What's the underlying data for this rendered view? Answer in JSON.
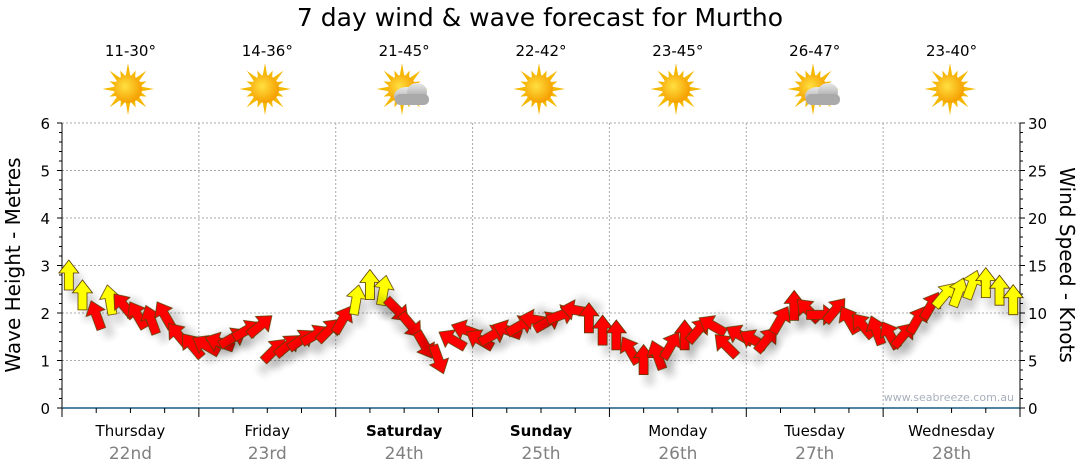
{
  "title": "7 day wind & wave forecast for Murtho",
  "days": [
    {
      "name": "Thursday",
      "date": "22nd",
      "temp": "11-30°",
      "icon": "sun-icon",
      "weekend": false
    },
    {
      "name": "Friday",
      "date": "23rd",
      "temp": "14-36°",
      "icon": "sun-icon",
      "weekend": false
    },
    {
      "name": "Saturday",
      "date": "24th",
      "temp": "21-45°",
      "icon": "sun-cloud-icon",
      "weekend": true
    },
    {
      "name": "Sunday",
      "date": "25th",
      "temp": "22-42°",
      "icon": "sun-icon",
      "weekend": true
    },
    {
      "name": "Monday",
      "date": "26th",
      "temp": "23-45°",
      "icon": "sun-icon",
      "weekend": false
    },
    {
      "name": "Tuesday",
      "date": "27th",
      "temp": "26-47°",
      "icon": "sun-cloud-icon",
      "weekend": false
    },
    {
      "name": "Wednesday",
      "date": "28th",
      "temp": "23-40°",
      "icon": "sun-icon",
      "weekend": false
    }
  ],
  "watermark": "www.seabreeze.com.au",
  "chart_data": {
    "type": "scatter",
    "title": "7 day wind & wave forecast for Murtho",
    "ylabel_left": "Wave Height - Metres",
    "ylabel_right": "Wind Speed - Knots",
    "ylim_left": [
      0,
      6
    ],
    "ylim_right": [
      0,
      30
    ],
    "yticks_left": [
      "0",
      "1",
      "2",
      "3",
      "4",
      "5",
      "6"
    ],
    "yticks_right": [
      "0",
      "5",
      "10",
      "15",
      "20",
      "25",
      "30"
    ],
    "grid": true,
    "points_per_day": 10,
    "strong_threshold_knots": 11,
    "colors": {
      "normal": "#ff0000",
      "strong": "#ffff00"
    },
    "wind_speed_knots": [
      14.0,
      11.9,
      9.8,
      11.4,
      10.8,
      9.8,
      9.3,
      9.8,
      7.7,
      6.6,
      6.6,
      6.9,
      7.4,
      8.2,
      8.7,
      6.1,
      6.6,
      7.2,
      7.7,
      8.2,
      9.3,
      11.4,
      13.0,
      12.4,
      10.3,
      8.7,
      6.6,
      5.1,
      7.2,
      8.2,
      7.2,
      7.7,
      8.2,
      8.7,
      9.3,
      9.1,
      9.8,
      10.3,
      9.5,
      8.2,
      7.7,
      6.1,
      5.1,
      5.6,
      6.6,
      7.7,
      8.2,
      8.7,
      6.6,
      7.7,
      7.2,
      7.2,
      9.3,
      10.8,
      10.3,
      9.8,
      10.3,
      9.3,
      8.7,
      8.2,
      7.7,
      7.7,
      9.3,
      10.8,
      11.9,
      12.2,
      13.0,
      13.2,
      12.4,
      11.4
    ],
    "arrow_direction_deg": [
      0,
      0,
      -20,
      -10,
      -40,
      -30,
      -20,
      -30,
      -40,
      -40,
      -60,
      -70,
      60,
      60,
      50,
      45,
      50,
      55,
      60,
      45,
      30,
      10,
      0,
      10,
      135,
      140,
      150,
      160,
      -60,
      -70,
      -60,
      60,
      -70,
      60,
      -80,
      60,
      70,
      -80,
      0,
      0,
      0,
      -30,
      0,
      -20,
      30,
      0,
      40,
      -60,
      -45,
      -60,
      -60,
      40,
      30,
      0,
      -45,
      90,
      40,
      -30,
      -40,
      -20,
      -30,
      40,
      30,
      30,
      40,
      20,
      20,
      0,
      0,
      0
    ]
  }
}
